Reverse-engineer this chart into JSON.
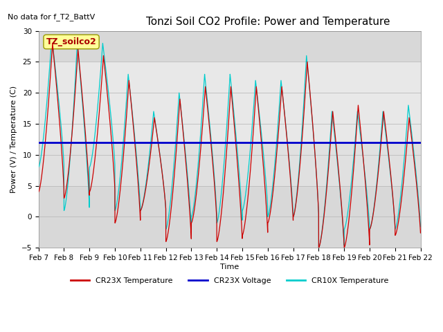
{
  "title": "Tonzi Soil CO2 Profile: Power and Temperature",
  "no_data_label": "No data for f_T2_BattV",
  "ylabel": "Power (V) / Temperature (C)",
  "xlabel": "Time",
  "ylim": [
    -5,
    30
  ],
  "xlim": [
    0,
    15
  ],
  "x_tick_labels": [
    "Feb 7",
    "Feb 8",
    "Feb 9",
    "Feb 10",
    "Feb 11",
    "Feb 12",
    "Feb 13",
    "Feb 14",
    "Feb 15",
    "Feb 16",
    "Feb 17",
    "Feb 18",
    "Feb 19",
    "Feb 20",
    "Feb 21",
    "Feb 22"
  ],
  "legend_entries": [
    "CR23X Temperature",
    "CR23X Voltage",
    "CR10X Temperature"
  ],
  "legend_colors": [
    "#cc0000",
    "#0000cc",
    "#00cccc"
  ],
  "voltage_value": 12.0,
  "shaded_upper": [
    12.0,
    30
  ],
  "shaded_lower": [
    -5,
    5
  ],
  "cr23x_color": "#cc0000",
  "cr10x_color": "#00cccc",
  "voltage_color": "#0000cc",
  "plot_bg_color": "#d8d8d8",
  "shaded_bg_color": "#e8e8e8",
  "annotation_box_color": "#ffff99",
  "annotation_text": "TZ_soilco2",
  "annotation_text_color": "#aa0000",
  "title_fontsize": 11,
  "axis_fontsize": 8,
  "tick_fontsize": 7.5
}
